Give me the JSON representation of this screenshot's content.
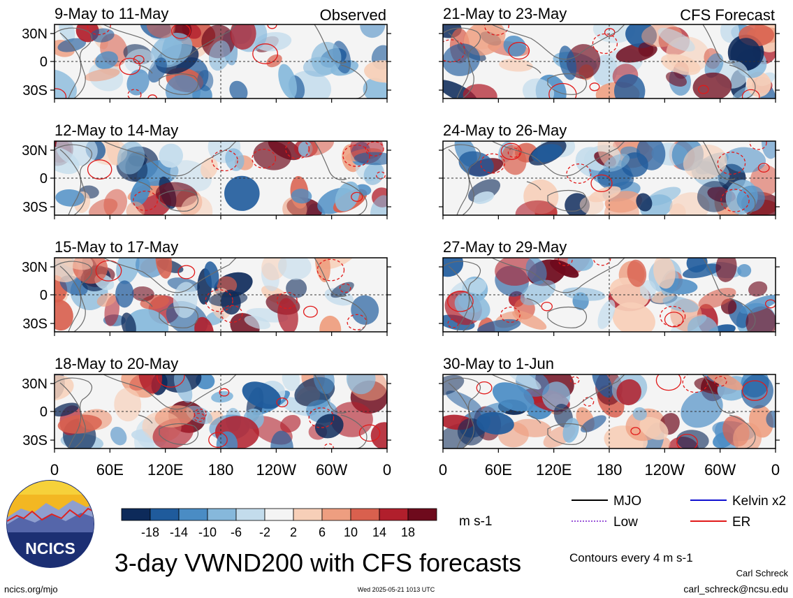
{
  "chart_data": {
    "type": "heatmap",
    "variable": "VWND200",
    "units": "m s-1",
    "title": "3-day VWND200 with CFS forecasts",
    "columns": [
      {
        "label": "Observed",
        "panels": [
          "9-May to 11-May",
          "12-May to 14-May",
          "15-May to 17-May",
          "18-May to 20-May"
        ]
      },
      {
        "label": "CFS Forecast",
        "panels": [
          "21-May to 23-May",
          "24-May to 26-May",
          "27-May to 29-May",
          "30-May to 1-Jun"
        ]
      }
    ],
    "x_ticks": [
      "0",
      "60E",
      "120E",
      "180",
      "120W",
      "60W",
      "0"
    ],
    "y_ticks": [
      "30N",
      "0",
      "30S"
    ],
    "colorbar": {
      "labels": [
        "-18",
        "-14",
        "-10",
        "-6",
        "-2",
        "2",
        "6",
        "10",
        "14",
        "18"
      ],
      "colors": [
        "#0d2a5a",
        "#1f5b9c",
        "#4a8cc4",
        "#86b8db",
        "#c3dcec",
        "#f4f4f4",
        "#f7cfb8",
        "#ee9e80",
        "#d9604e",
        "#b11f2c",
        "#6e0a1c"
      ],
      "units_label": "m s-1"
    },
    "legend": [
      {
        "label": "MJO",
        "color": "#000000",
        "style": "solid"
      },
      {
        "label": "Kelvin x2",
        "color": "#1010d0",
        "style": "solid"
      },
      {
        "label": "Low",
        "color": "#9a55d8",
        "style": "dotted"
      },
      {
        "label": "ER",
        "color": "#e11a1a",
        "style": "solid"
      }
    ],
    "contour_note": "Contours every 4 m s-1"
  },
  "footer": {
    "left": "ncics.org/mjo",
    "timestamp": "Wed 2025-05-21 1013 UTC",
    "author": "Carl Schreck",
    "email": "carl_schreck@ncsu.edu",
    "logo_text": "NCICS"
  }
}
